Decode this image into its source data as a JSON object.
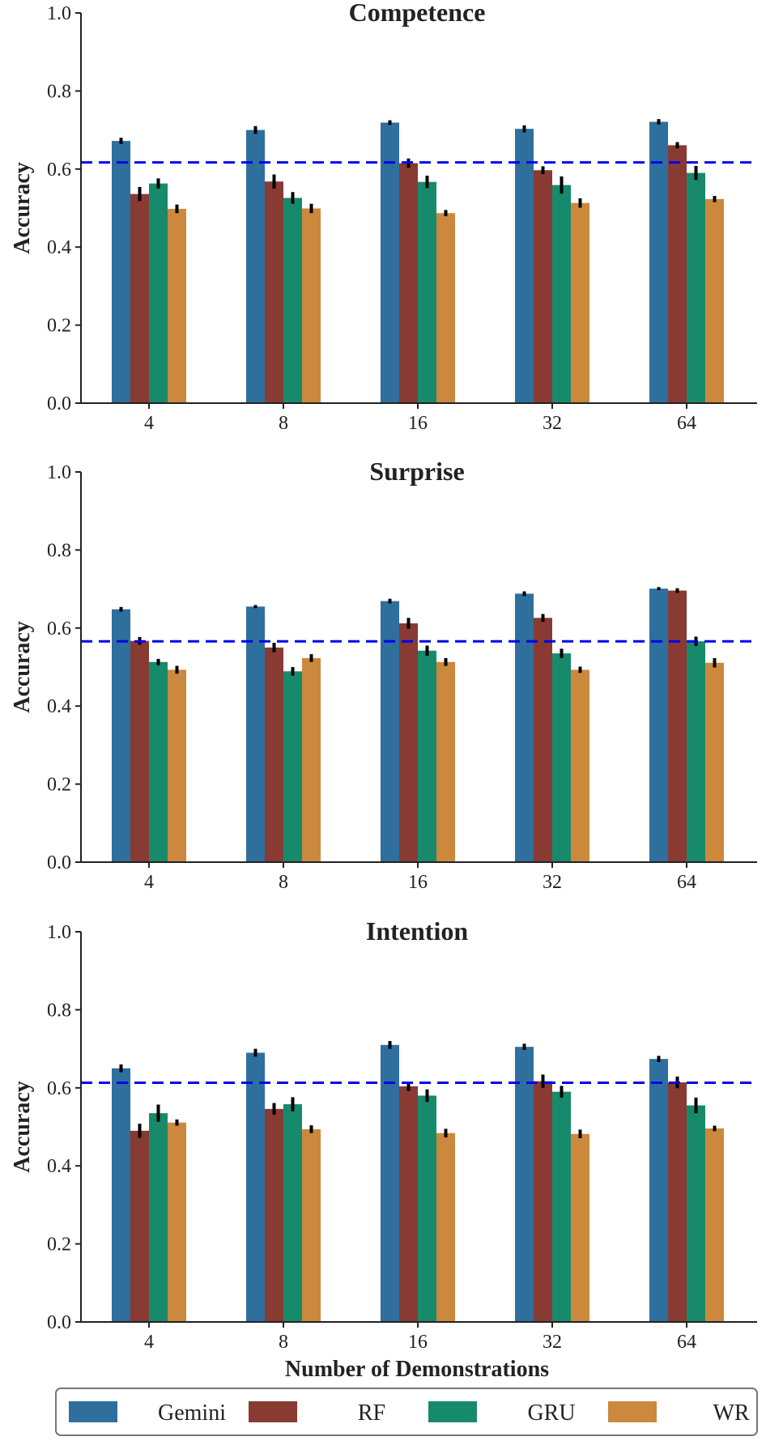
{
  "figure": {
    "xlabel": "Number of Demonstrations"
  },
  "legend": {
    "placement": "bottom",
    "items": [
      {
        "label": "Gemini",
        "color": "#2e6f9e"
      },
      {
        "label": "RF",
        "color": "#883a33"
      },
      {
        "label": "GRU",
        "color": "#178a6c"
      },
      {
        "label": "WR",
        "color": "#cc893e"
      }
    ]
  },
  "reference_line": {
    "color": "#0000ee",
    "style": "dashed"
  },
  "chart_data": [
    {
      "type": "bar",
      "title": "Competence",
      "ylabel": "Accuracy",
      "ylim": [
        0,
        1.0
      ],
      "yticks": [
        "0.0",
        "0.2",
        "0.4",
        "0.6",
        "0.8",
        "1.0"
      ],
      "categories": [
        "4",
        "8",
        "16",
        "32",
        "64"
      ],
      "reference_value": 0.617,
      "series": [
        {
          "name": "Gemini",
          "values": [
            0.672,
            0.7,
            0.719,
            0.703,
            0.721
          ],
          "errors": [
            0.008,
            0.01,
            0.006,
            0.009,
            0.007
          ]
        },
        {
          "name": "RF",
          "values": [
            0.536,
            0.568,
            0.615,
            0.597,
            0.661
          ],
          "errors": [
            0.018,
            0.018,
            0.012,
            0.01,
            0.008
          ]
        },
        {
          "name": "GRU",
          "values": [
            0.563,
            0.526,
            0.567,
            0.559,
            0.59
          ],
          "errors": [
            0.013,
            0.015,
            0.016,
            0.022,
            0.018
          ]
        },
        {
          "name": "WR",
          "values": [
            0.498,
            0.499,
            0.487,
            0.513,
            0.523
          ],
          "errors": [
            0.011,
            0.012,
            0.008,
            0.012,
            0.008
          ]
        }
      ]
    },
    {
      "type": "bar",
      "title": "Surprise",
      "ylabel": "Accuracy",
      "ylim": [
        0,
        1.0
      ],
      "yticks": [
        "0.0",
        "0.2",
        "0.4",
        "0.6",
        "0.8",
        "1.0"
      ],
      "categories": [
        "4",
        "8",
        "16",
        "32",
        "64"
      ],
      "reference_value": 0.566,
      "series": [
        {
          "name": "Gemini",
          "values": [
            0.648,
            0.655,
            0.669,
            0.688,
            0.701
          ],
          "errors": [
            0.006,
            0.004,
            0.006,
            0.006,
            0.004
          ]
        },
        {
          "name": "RF",
          "values": [
            0.567,
            0.55,
            0.612,
            0.626,
            0.696
          ],
          "errors": [
            0.01,
            0.012,
            0.014,
            0.01,
            0.006
          ]
        },
        {
          "name": "GRU",
          "values": [
            0.513,
            0.489,
            0.542,
            0.535,
            0.566
          ],
          "errors": [
            0.008,
            0.011,
            0.013,
            0.012,
            0.012
          ]
        },
        {
          "name": "WR",
          "values": [
            0.493,
            0.523,
            0.513,
            0.493,
            0.511
          ],
          "errors": [
            0.01,
            0.01,
            0.01,
            0.008,
            0.012
          ]
        }
      ]
    },
    {
      "type": "bar",
      "title": "Intention",
      "ylabel": "Accuracy",
      "ylim": [
        0,
        1.0
      ],
      "yticks": [
        "0.0",
        "0.2",
        "0.4",
        "0.6",
        "0.8",
        "1.0"
      ],
      "categories": [
        "4",
        "8",
        "16",
        "32",
        "64"
      ],
      "reference_value": 0.613,
      "series": [
        {
          "name": "Gemini",
          "values": [
            0.65,
            0.69,
            0.71,
            0.705,
            0.674
          ],
          "errors": [
            0.01,
            0.01,
            0.01,
            0.008,
            0.008
          ]
        },
        {
          "name": "RF",
          "values": [
            0.49,
            0.546,
            0.604,
            0.617,
            0.614
          ],
          "errors": [
            0.018,
            0.015,
            0.012,
            0.017,
            0.015
          ]
        },
        {
          "name": "GRU",
          "values": [
            0.535,
            0.558,
            0.58,
            0.59,
            0.555
          ],
          "errors": [
            0.022,
            0.018,
            0.016,
            0.015,
            0.02
          ]
        },
        {
          "name": "WR",
          "values": [
            0.511,
            0.494,
            0.484,
            0.482,
            0.496
          ],
          "errors": [
            0.008,
            0.01,
            0.011,
            0.011,
            0.007
          ]
        }
      ]
    }
  ]
}
